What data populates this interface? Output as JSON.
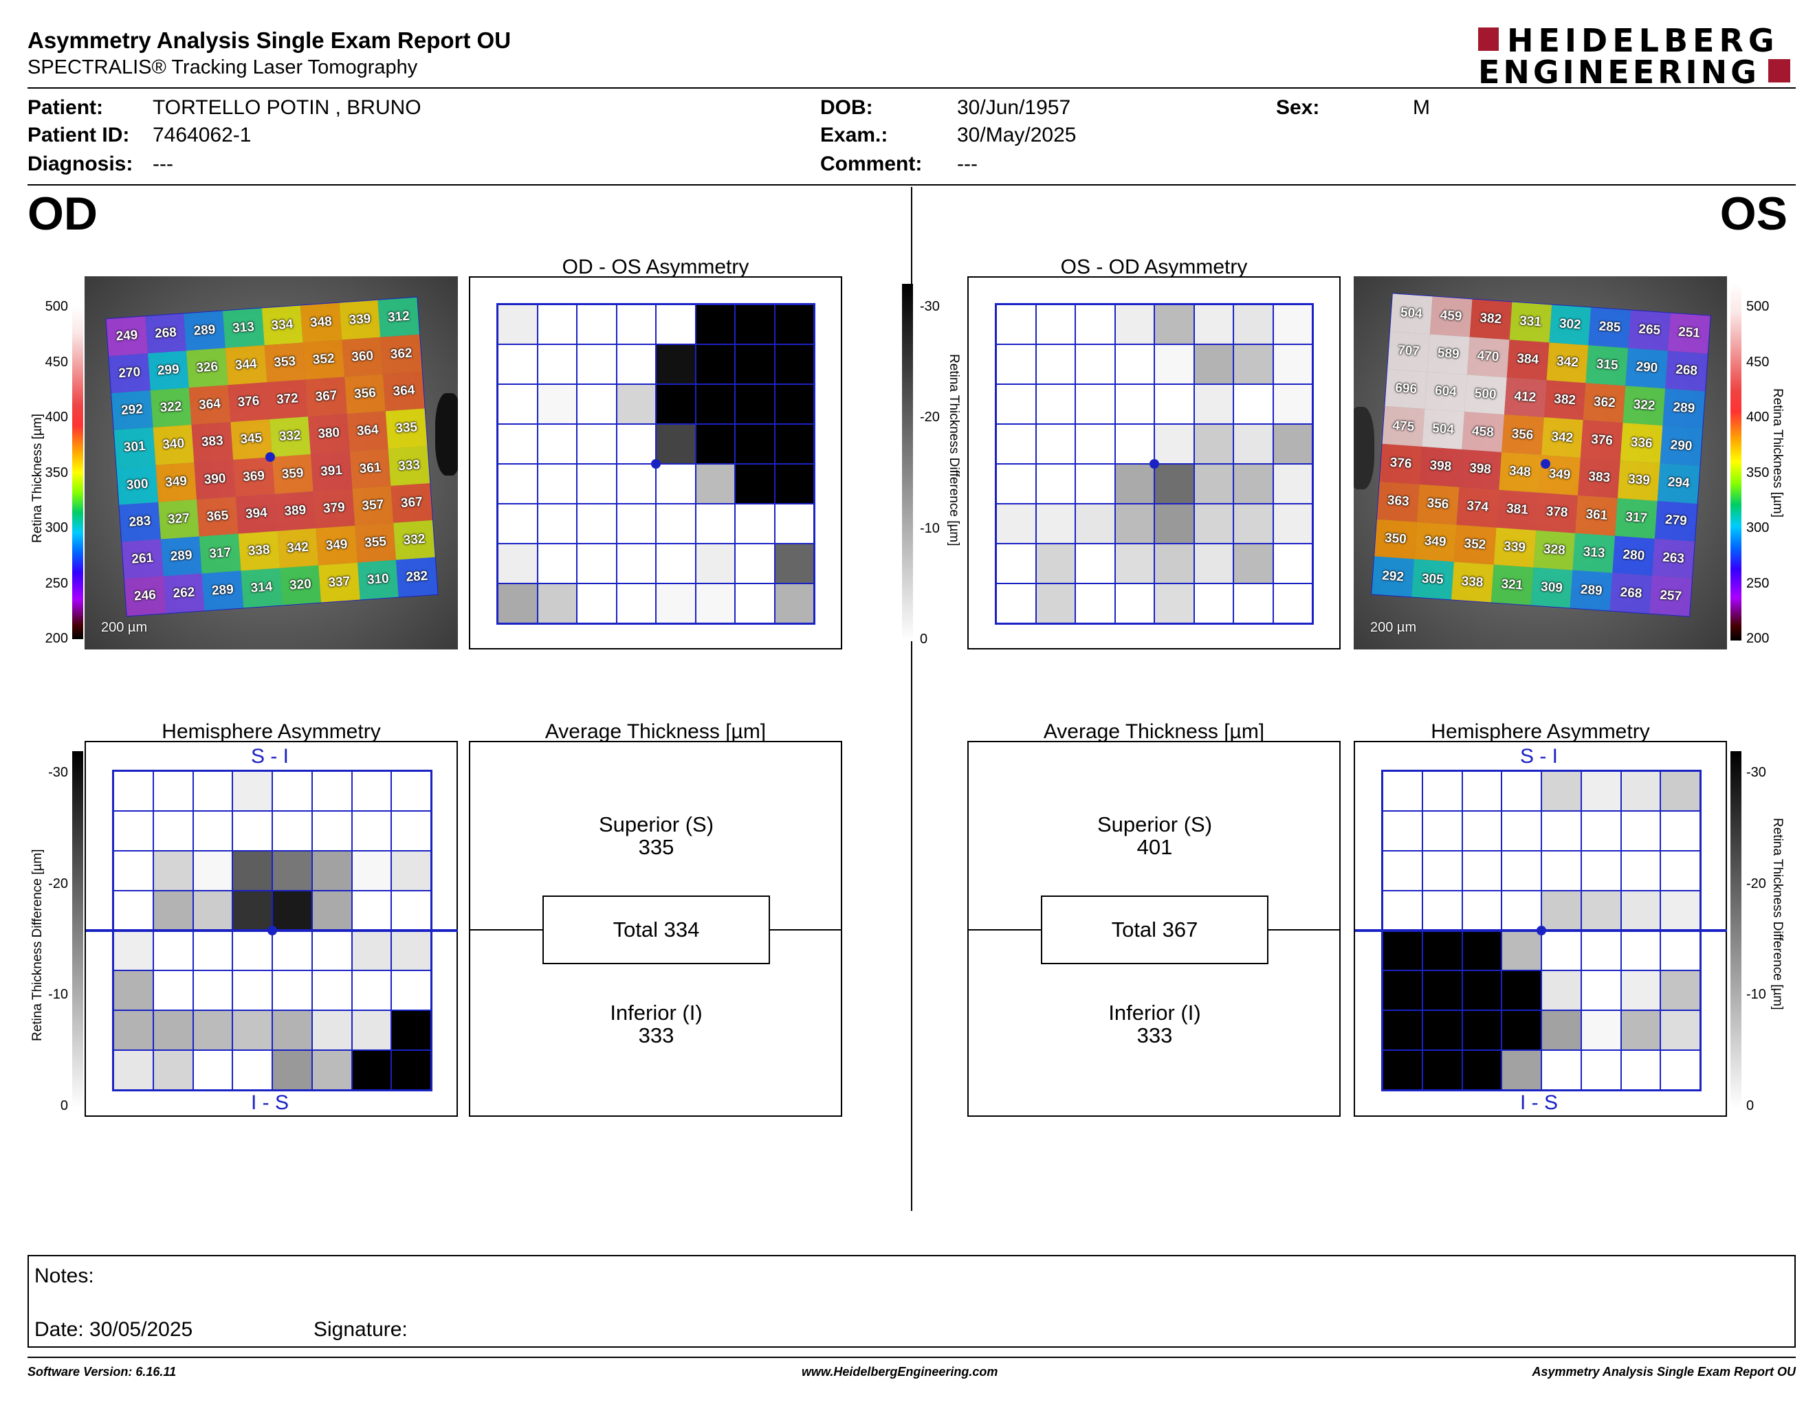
{
  "header": {
    "title": "Asymmetry Analysis Single Exam Report OU",
    "subtitle": "SPECTRALIS® Tracking Laser Tomography",
    "logo_line1": "HEIDELBERG",
    "logo_line2": "ENGINEERING"
  },
  "patient": {
    "patient_label": "Patient:",
    "patient_value": "TORTELLO POTIN , BRUNO",
    "id_label": "Patient ID:",
    "id_value": "7464062-1",
    "diagnosis_label": "Diagnosis:",
    "diagnosis_value": "---",
    "dob_label": "DOB:",
    "dob_value": "30/Jun/1957",
    "exam_label": "Exam.:",
    "exam_value": "30/May/2025",
    "comment_label": "Comment:",
    "comment_value": "---",
    "sex_label": "Sex:",
    "sex_value": "M"
  },
  "od": {
    "eye": "OD",
    "asym_title": "OD - OS Asymmetry",
    "hemi_title": "Hemisphere Asymmetry",
    "avg_title": "Average Thickness [µm]",
    "superior_label": "Superior (S)",
    "superior_value": "335",
    "total_label": "Total 334",
    "inferior_label": "Inferior (I)",
    "inferior_value": "333",
    "si_label": "S - I",
    "is_label": "I - S",
    "scale_bar": "200 µm",
    "thickness_grid": [
      [
        "249",
        "268",
        "289",
        "313",
        "334",
        "348",
        "339",
        "312"
      ],
      [
        "270",
        "299",
        "326",
        "344",
        "353",
        "352",
        "360",
        "362"
      ],
      [
        "292",
        "322",
        "364",
        "376",
        "372",
        "367",
        "356",
        "364"
      ],
      [
        "301",
        "340",
        "383",
        "345",
        "332",
        "380",
        "364",
        "335"
      ],
      [
        "300",
        "349",
        "390",
        "369",
        "359",
        "391",
        "361",
        "333"
      ],
      [
        "283",
        "327",
        "365",
        "394",
        "389",
        "379",
        "357",
        "367"
      ],
      [
        "261",
        "289",
        "317",
        "338",
        "342",
        "349",
        "355",
        "332"
      ],
      [
        "246",
        "262",
        "289",
        "314",
        "320",
        "337",
        "310",
        "282"
      ]
    ],
    "asym_grid": [
      [
        2,
        0,
        0,
        0,
        0,
        30,
        30,
        30
      ],
      [
        0,
        0,
        0,
        0,
        28,
        30,
        30,
        30
      ],
      [
        0,
        1,
        0,
        5,
        30,
        30,
        30,
        30
      ],
      [
        0,
        0,
        0,
        0,
        22,
        30,
        30,
        30
      ],
      [
        0,
        0,
        0,
        0,
        0,
        8,
        30,
        30
      ],
      [
        0,
        0,
        0,
        0,
        0,
        0,
        0,
        0
      ],
      [
        2,
        0,
        0,
        0,
        0,
        2,
        0,
        18
      ],
      [
        10,
        6,
        0,
        0,
        1,
        1,
        0,
        9
      ]
    ],
    "hemi_grid": [
      [
        0,
        0,
        0,
        2,
        0,
        0,
        0,
        0
      ],
      [
        0,
        0,
        0,
        0,
        0,
        0,
        0,
        0
      ],
      [
        0,
        5,
        1,
        19,
        16,
        11,
        1,
        3
      ],
      [
        0,
        9,
        6,
        24,
        27,
        10,
        0,
        0
      ],
      [
        2,
        0,
        0,
        0,
        0,
        0,
        3,
        3
      ],
      [
        9,
        0,
        0,
        0,
        0,
        0,
        0,
        0
      ],
      [
        9,
        9,
        8,
        7,
        9,
        3,
        3,
        30
      ],
      [
        3,
        5,
        0,
        0,
        12,
        8,
        30,
        30
      ]
    ]
  },
  "os": {
    "eye": "OS",
    "asym_title": "OS - OD Asymmetry",
    "hemi_title": "Hemisphere Asymmetry",
    "avg_title": "Average Thickness [µm]",
    "superior_label": "Superior (S)",
    "superior_value": "401",
    "total_label": "Total 367",
    "inferior_label": "Inferior (I)",
    "inferior_value": "333",
    "si_label": "S - I",
    "is_label": "I - S",
    "scale_bar": "200 µm",
    "thickness_grid": [
      [
        "504",
        "459",
        "382",
        "331",
        "302",
        "285",
        "265",
        "251"
      ],
      [
        "707",
        "589",
        "470",
        "384",
        "342",
        "315",
        "290",
        "268"
      ],
      [
        "696",
        "604",
        "500",
        "412",
        "382",
        "362",
        "322",
        "289"
      ],
      [
        "475",
        "504",
        "458",
        "356",
        "342",
        "376",
        "336",
        "290"
      ],
      [
        "376",
        "398",
        "398",
        "348",
        "349",
        "383",
        "339",
        "294"
      ],
      [
        "363",
        "356",
        "374",
        "381",
        "378",
        "361",
        "317",
        "279"
      ],
      [
        "350",
        "349",
        "352",
        "339",
        "328",
        "313",
        "280",
        "263"
      ],
      [
        "292",
        "305",
        "338",
        "321",
        "309",
        "289",
        "268",
        "257"
      ]
    ],
    "asym_grid": [
      [
        0,
        0,
        0,
        2,
        8,
        2,
        3,
        1
      ],
      [
        0,
        0,
        0,
        0,
        1,
        9,
        7,
        1
      ],
      [
        0,
        0,
        0,
        0,
        0,
        2,
        0,
        1
      ],
      [
        0,
        0,
        0,
        0,
        2,
        6,
        3,
        9
      ],
      [
        0,
        0,
        0,
        10,
        17,
        7,
        8,
        2
      ],
      [
        2,
        2,
        3,
        8,
        12,
        5,
        5,
        2
      ],
      [
        0,
        5,
        0,
        4,
        6,
        3,
        8,
        0
      ],
      [
        0,
        5,
        0,
        0,
        4,
        0,
        0,
        0
      ]
    ],
    "hemi_grid": [
      [
        0,
        0,
        0,
        0,
        5,
        2,
        3,
        6
      ],
      [
        0,
        0,
        0,
        0,
        0,
        0,
        0,
        0
      ],
      [
        0,
        0,
        0,
        0,
        0,
        0,
        0,
        0
      ],
      [
        0,
        0,
        0,
        0,
        6,
        5,
        3,
        2
      ],
      [
        30,
        30,
        30,
        8,
        0,
        0,
        0,
        0
      ],
      [
        30,
        30,
        30,
        30,
        3,
        0,
        2,
        7
      ],
      [
        30,
        30,
        30,
        30,
        11,
        1,
        8,
        4
      ],
      [
        30,
        30,
        30,
        11,
        0,
        0,
        0,
        0
      ]
    ]
  },
  "thickness_scale": {
    "label": "Retina Thickness [µm]",
    "ticks": [
      "500",
      "450",
      "400",
      "350",
      "300",
      "250",
      "200"
    ]
  },
  "diff_scale": {
    "label": "Retina Thickness Difference [µm]",
    "ticks": [
      "-30",
      "-20",
      "-10",
      "0"
    ]
  },
  "notes": {
    "notes_label": "Notes:",
    "date_label": "Date: 30/05/2025",
    "signature_label": "Signature:"
  },
  "footer": {
    "software": "Software Version: 6.16.11",
    "website": "www.HeidelbergEngineering.com",
    "report": "Asymmetry Analysis Single Exam Report OU"
  },
  "colors": {
    "grid_blue": "#1a22c4",
    "logo_red": "#a3182e"
  }
}
